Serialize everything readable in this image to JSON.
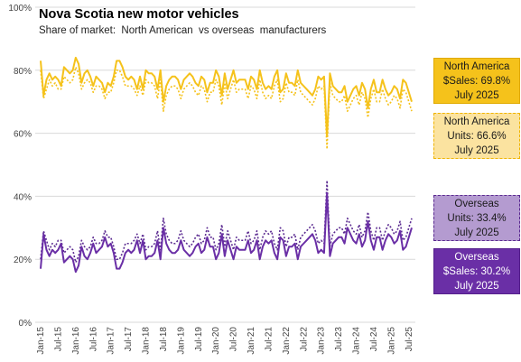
{
  "chart_data": {
    "type": "line",
    "title": "Nova Scotia new motor vehicles",
    "subtitle": "Share of market:  North American  vs overseas  manufacturers",
    "ylim": [
      0,
      100
    ],
    "y_ticks": [
      "0%",
      "20%",
      "40%",
      "60%",
      "80%",
      "100%"
    ],
    "x_tick_labels": [
      "Jan-15",
      "Jul-15",
      "Jan-16",
      "Jul-16",
      "Jan-17",
      "Jul-17",
      "Jan-18",
      "Jul-18",
      "Jan-19",
      "Jul-19",
      "Jan-20",
      "Jul-20",
      "Jan-21",
      "Jul-21",
      "Jan-22",
      "Jul-22",
      "Jan-23",
      "Jul-23",
      "Jan-24",
      "Jul-24",
      "Jan-25",
      "Jul-25"
    ],
    "period": "monthly, Jan-2015 to Jul-2025",
    "grid": "horizontal",
    "legend": "right",
    "series": [
      {
        "key": "na_sales",
        "color": "#f5c21b",
        "style": "solid",
        "values": [
          83,
          72,
          77,
          79,
          77,
          78,
          77,
          75,
          81,
          80,
          79,
          80,
          84,
          82,
          76,
          79,
          80,
          78,
          75,
          78,
          77,
          76,
          73,
          76,
          75,
          78,
          83,
          83,
          81,
          78,
          77,
          78,
          77,
          74,
          78,
          74,
          80,
          79,
          79,
          78,
          74,
          80,
          70,
          75,
          77,
          78,
          78,
          77,
          74,
          77,
          78,
          79,
          78,
          76,
          75,
          78,
          77,
          73,
          76,
          76,
          80,
          78,
          72,
          79,
          74,
          77,
          80,
          76,
          77,
          77,
          77,
          74,
          78,
          77,
          74,
          80,
          76,
          74,
          75,
          74,
          78,
          80,
          73,
          74,
          79,
          76,
          76,
          75,
          80,
          76,
          75,
          74,
          73,
          72,
          74,
          78,
          77,
          78,
          59,
          79,
          75,
          74,
          73,
          73,
          75,
          70,
          72,
          74,
          75,
          72,
          76,
          74,
          68,
          74,
          77,
          73,
          73,
          77,
          74,
          72,
          73,
          75,
          74,
          71,
          77,
          76,
          73,
          70
        ]
      },
      {
        "key": "na_units",
        "color": "#f5c21b",
        "style": "dotted",
        "values": [
          80,
          71,
          74,
          77,
          75,
          76,
          74,
          74,
          78,
          77,
          76,
          77,
          81,
          79,
          74,
          76,
          77,
          76,
          73,
          75,
          75,
          74,
          71,
          73,
          73,
          76,
          80,
          80,
          78,
          75,
          75,
          75,
          74,
          72,
          75,
          72,
          77,
          76,
          76,
          75,
          71,
          77,
          67,
          72,
          74,
          75,
          75,
          74,
          71,
          74,
          75,
          76,
          75,
          73,
          72,
          75,
          74,
          70,
          73,
          73,
          77,
          75,
          69,
          76,
          71,
          74,
          77,
          73,
          74,
          74,
          74,
          71,
          75,
          74,
          71,
          77,
          73,
          71,
          72,
          71,
          75,
          77,
          70,
          71,
          76,
          73,
          73,
          72,
          77,
          73,
          72,
          71,
          70,
          69,
          71,
          75,
          74,
          75,
          55,
          76,
          72,
          71,
          70,
          70,
          72,
          67,
          69,
          71,
          72,
          69,
          73,
          71,
          65,
          71,
          74,
          70,
          70,
          74,
          71,
          69,
          70,
          72,
          71,
          68,
          74,
          73,
          70,
          67
        ]
      },
      {
        "key": "os_units",
        "color": "#5b2b91",
        "style": "dotted",
        "values": [
          20,
          29,
          26,
          23,
          25,
          24,
          26,
          26,
          22,
          23,
          24,
          23,
          19,
          21,
          26,
          24,
          23,
          24,
          27,
          25,
          25,
          26,
          29,
          27,
          27,
          24,
          20,
          20,
          22,
          25,
          25,
          25,
          26,
          28,
          25,
          28,
          23,
          24,
          24,
          25,
          29,
          23,
          33,
          28,
          26,
          25,
          25,
          26,
          29,
          26,
          25,
          24,
          25,
          27,
          28,
          25,
          26,
          30,
          27,
          27,
          23,
          25,
          31,
          24,
          29,
          26,
          23,
          27,
          26,
          26,
          26,
          29,
          25,
          26,
          29,
          23,
          27,
          29,
          28,
          29,
          25,
          23,
          30,
          29,
          24,
          27,
          27,
          28,
          23,
          27,
          28,
          29,
          30,
          31,
          29,
          25,
          26,
          25,
          45,
          24,
          28,
          29,
          30,
          30,
          28,
          33,
          31,
          29,
          28,
          31,
          27,
          29,
          35,
          29,
          26,
          30,
          30,
          26,
          29,
          31,
          30,
          28,
          29,
          32,
          26,
          27,
          30,
          33
        ]
      },
      {
        "key": "os_sales",
        "color": "#6a2fa6",
        "style": "solid",
        "values": [
          17,
          28,
          23,
          21,
          23,
          22,
          23,
          25,
          19,
          20,
          21,
          20,
          16,
          18,
          24,
          21,
          20,
          22,
          25,
          22,
          23,
          24,
          27,
          24,
          25,
          22,
          17,
          17,
          19,
          22,
          23,
          22,
          23,
          26,
          22,
          26,
          20,
          21,
          21,
          22,
          26,
          20,
          30,
          25,
          23,
          22,
          22,
          23,
          26,
          23,
          22,
          21,
          22,
          24,
          25,
          22,
          23,
          27,
          24,
          24,
          20,
          22,
          28,
          21,
          26,
          23,
          20,
          24,
          23,
          23,
          23,
          26,
          22,
          23,
          26,
          20,
          24,
          26,
          25,
          26,
          22,
          20,
          27,
          26,
          21,
          24,
          24,
          25,
          20,
          24,
          25,
          26,
          27,
          28,
          26,
          22,
          23,
          22,
          41,
          21,
          25,
          26,
          27,
          27,
          25,
          30,
          28,
          26,
          25,
          28,
          24,
          26,
          32,
          26,
          23,
          27,
          27,
          23,
          26,
          28,
          27,
          25,
          26,
          29,
          23,
          24,
          27,
          30
        ]
      }
    ]
  },
  "legend": {
    "na_sales": {
      "line1": "North America",
      "line2": "$Sales: 69.8%",
      "line3": "July 2025"
    },
    "na_units": {
      "line1": "North America",
      "line2": "Units: 66.6%",
      "line3": "July 2025"
    },
    "os_units": {
      "line1": "Overseas",
      "line2": "Units: 33.4%",
      "line3": "July 2025"
    },
    "os_sales": {
      "line1": "Overseas",
      "line2": "$Sales: 30.2%",
      "line3": "July 2025"
    }
  }
}
